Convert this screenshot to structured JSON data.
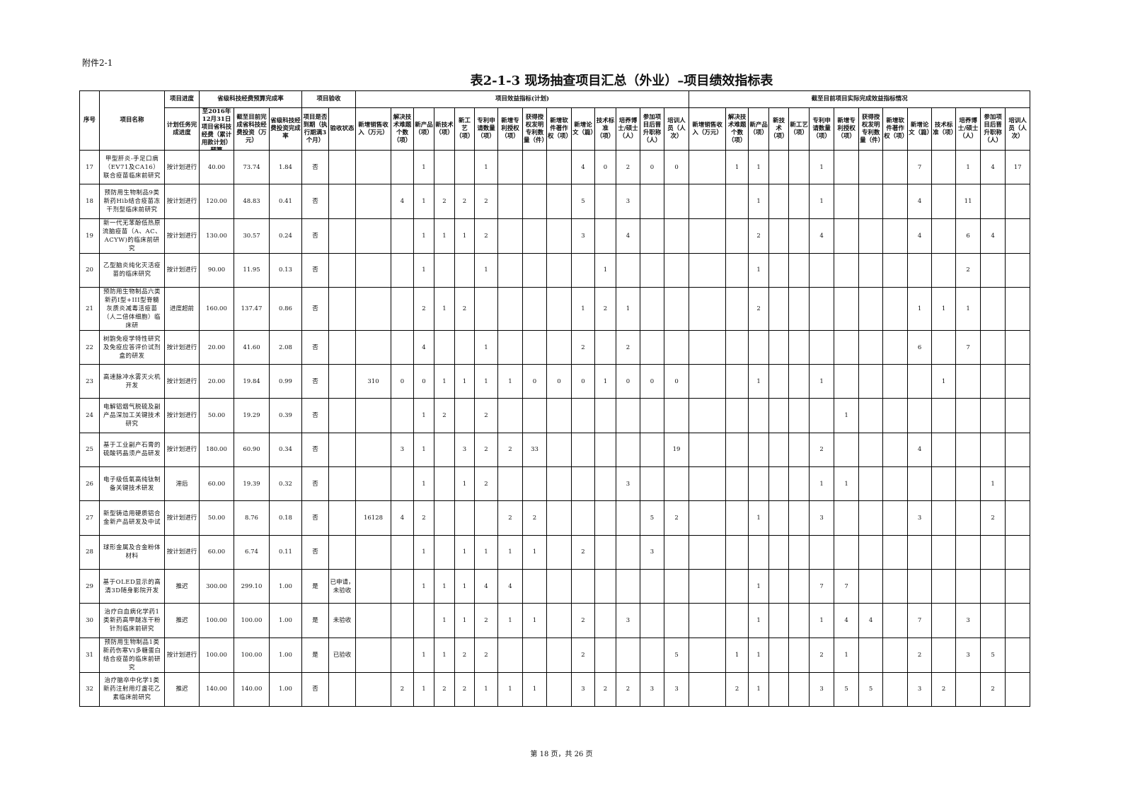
{
  "document": {
    "attachment_label": "附件2-1",
    "title": "表2-1-3 现场抽查项目汇总（外业）–项目绩效指标表",
    "footer": "第 18 页，共 26 页"
  },
  "table": {
    "group_headers": {
      "seq": "序号",
      "name": "项目名称",
      "progress": "项目进度",
      "budget": "省级科技经费预算完成率",
      "acceptance": "项目验收",
      "plan": "项目效益指标(计划)",
      "actual": "截至目前项目实际完成效益指标情况"
    },
    "sub_headers": {
      "progress": "计划任务完成进度",
      "budget_plan": "至2016年12月31日项目省科技经费（累计用款计划）预算",
      "budget_spent": "截至目前完成省科技经费投资（万元）",
      "budget_rate": "省级科技经费投资完成率",
      "overdue": "项目是否到期（执行期满3个月）",
      "acceptance_status": "验收状态"
    },
    "plan_columns": [
      "新增销售收入（万元）",
      "解决技术难题个数（项）",
      "新产品（项）",
      "新技术（项）",
      "新工艺（项）",
      "专利申请数量（项）",
      "新增专利授权（项）",
      "获得授权发明专利数量（件）",
      "新增软件著作权（项）",
      "新增论文（篇）",
      "技术标准（项）",
      "培养博士/硕士（人）",
      "参加项目后晋升职称（人）",
      "培训人员（人次）"
    ],
    "actual_columns": [
      "新增销售收入（万元）",
      "解决技术难题个数（项）",
      "新产品（项）",
      "新技术（项）",
      "新工艺（项）",
      "专利申请数量（项）",
      "新增专利授权（项）",
      "获得授权发明专利数量（件）",
      "新增软件著作权（项）",
      "新增论文（篇）",
      "技术标准（项）",
      "培养博士/硕士（人）",
      "参加项目后晋升职称（人）",
      "培训人员（人次）"
    ],
    "rows": [
      {
        "id": "17",
        "name": "甲型肝炎-手足口病（EV71及CA16）联合疫苗临床前研究",
        "progress": "按计划进行",
        "budget": "40.00",
        "spent": "73.74",
        "rate": "1.84",
        "overdue": "否",
        "status": "",
        "plan": [
          "",
          "",
          "1",
          "",
          "",
          "1",
          "",
          "",
          "",
          "4",
          "0",
          "2",
          "0",
          "0"
        ],
        "actual": [
          "",
          "1",
          "1",
          "",
          "",
          "1",
          "",
          "",
          "",
          "7",
          "",
          "1",
          "4",
          "17"
        ]
      },
      {
        "id": "18",
        "name": "预防用生物制品9类新药Hib结合疫苗冻干剂型临床前研究",
        "progress": "按计划进行",
        "budget": "120.00",
        "spent": "48.83",
        "rate": "0.41",
        "overdue": "否",
        "status": "",
        "plan": [
          "",
          "4",
          "1",
          "2",
          "2",
          "2",
          "",
          "",
          "",
          "5",
          "",
          "3",
          "",
          ""
        ],
        "actual": [
          "",
          "",
          "1",
          "",
          "",
          "1",
          "",
          "",
          "",
          "4",
          "",
          "11",
          "",
          ""
        ]
      },
      {
        "id": "19",
        "name": "新一代无苯酚低热原流脑疫苗（A、AC、ACYW)的临床前研究",
        "progress": "按计划进行",
        "budget": "130.00",
        "spent": "30.57",
        "rate": "0.24",
        "overdue": "否",
        "status": "",
        "plan": [
          "",
          "",
          "1",
          "1",
          "1",
          "2",
          "",
          "",
          "",
          "3",
          "",
          "4",
          "",
          ""
        ],
        "actual": [
          "",
          "",
          "2",
          "",
          "",
          "4",
          "",
          "",
          "",
          "4",
          "",
          "6",
          "4",
          ""
        ]
      },
      {
        "id": "20",
        "name": "乙型脑炎纯化灭活疫苗的临床研究",
        "progress": "按计划进行",
        "budget": "90.00",
        "spent": "11.95",
        "rate": "0.13",
        "overdue": "否",
        "status": "",
        "plan": [
          "",
          "",
          "1",
          "",
          "",
          "1",
          "",
          "",
          "",
          "",
          "1",
          "",
          "",
          ""
        ],
        "actual": [
          "",
          "",
          "1",
          "",
          "",
          "",
          "",
          "",
          "",
          "",
          "",
          "2",
          "",
          ""
        ]
      },
      {
        "id": "21",
        "name": "预防用生物制品六类新药I型+III型脊髓灰质炎减毒活疫苗（人二倍体细胞）临床研",
        "progress": "进度超前",
        "budget": "160.00",
        "spent": "137.47",
        "rate": "0.86",
        "overdue": "否",
        "status": "",
        "plan": [
          "",
          "",
          "2",
          "1",
          "2",
          "",
          "",
          "",
          "",
          "1",
          "2",
          "1",
          "",
          ""
        ],
        "actual": [
          "",
          "",
          "2",
          "",
          "",
          "",
          "",
          "",
          "",
          "1",
          "1",
          "1",
          "",
          ""
        ]
      },
      {
        "id": "22",
        "name": "树鼩免疫学特性研究及免疫应答评价试剂盒的研发",
        "progress": "按计划进行",
        "budget": "20.00",
        "spent": "41.60",
        "rate": "2.08",
        "overdue": "否",
        "status": "",
        "plan": [
          "",
          "",
          "4",
          "",
          "",
          "1",
          "",
          "",
          "",
          "2",
          "",
          "2",
          "",
          ""
        ],
        "actual": [
          "",
          "",
          "",
          "",
          "",
          "",
          "",
          "",
          "",
          "6",
          "",
          "7",
          "",
          ""
        ]
      },
      {
        "id": "23",
        "name": "高速脉冲水雾灭火机开发",
        "progress": "按计划进行",
        "budget": "20.00",
        "spent": "19.84",
        "rate": "0.99",
        "overdue": "否",
        "status": "",
        "plan": [
          "310",
          "0",
          "0",
          "1",
          "1",
          "1",
          "1",
          "0",
          "0",
          "0",
          "1",
          "0",
          "0",
          "0"
        ],
        "actual": [
          "",
          "",
          "1",
          "",
          "",
          "1",
          "",
          "",
          "",
          "",
          "1",
          "",
          "",
          ""
        ]
      },
      {
        "id": "24",
        "name": "电解铝烟气脱硫及副产品深加工关键技术研究",
        "progress": "按计划进行",
        "budget": "50.00",
        "spent": "19.29",
        "rate": "0.39",
        "overdue": "否",
        "status": "",
        "plan": [
          "",
          "",
          "1",
          "2",
          "",
          "2",
          "",
          "",
          "",
          "",
          "",
          "",
          "",
          ""
        ],
        "actual": [
          "",
          "",
          "",
          "",
          "",
          "",
          "1",
          "",
          "",
          "",
          "",
          "",
          "",
          ""
        ]
      },
      {
        "id": "25",
        "name": "基于工业副产石膏的硫酸钙晶须产品研发",
        "progress": "按计划进行",
        "budget": "180.00",
        "spent": "60.90",
        "rate": "0.34",
        "overdue": "否",
        "status": "",
        "plan": [
          "",
          "3",
          "1",
          "",
          "3",
          "2",
          "2",
          "33",
          "",
          "",
          "",
          "",
          "",
          "19"
        ],
        "actual": [
          "",
          "",
          "",
          "",
          "",
          "2",
          "",
          "",
          "",
          "4",
          "",
          "",
          "",
          ""
        ]
      },
      {
        "id": "26",
        "name": "电子级低氧高纯钛制备关键技术研发",
        "progress": "滞后",
        "budget": "60.00",
        "spent": "19.39",
        "rate": "0.32",
        "overdue": "否",
        "status": "",
        "plan": [
          "",
          "",
          "1",
          "",
          "1",
          "2",
          "",
          "",
          "",
          "",
          "",
          "3",
          "",
          ""
        ],
        "actual": [
          "",
          "",
          "",
          "",
          "",
          "1",
          "1",
          "",
          "",
          "",
          "",
          "",
          "1",
          ""
        ]
      },
      {
        "id": "27",
        "name": "新型铸造用硬质铝合金新产品研发及中试",
        "progress": "按计划进行",
        "budget": "50.00",
        "spent": "8.76",
        "rate": "0.18",
        "overdue": "否",
        "status": "",
        "plan": [
          "16128",
          "4",
          "2",
          "",
          "",
          "",
          "2",
          "2",
          "",
          "",
          "",
          "",
          "5",
          "2"
        ],
        "actual": [
          "",
          "",
          "1",
          "",
          "",
          "3",
          "",
          "",
          "",
          "3",
          "",
          "",
          "2",
          ""
        ]
      },
      {
        "id": "28",
        "name": "球形金属及合金粉体材料",
        "progress": "按计划进行",
        "budget": "60.00",
        "spent": "6.74",
        "rate": "0.11",
        "overdue": "否",
        "status": "",
        "plan": [
          "",
          "",
          "1",
          "",
          "1",
          "1",
          "1",
          "1",
          "",
          "2",
          "",
          "",
          "3",
          ""
        ],
        "actual": [
          "",
          "",
          "",
          "",
          "",
          "",
          "",
          "",
          "",
          "",
          "",
          "",
          "",
          ""
        ]
      },
      {
        "id": "29",
        "name": "基于OLED显示的高清3D随身影院开发",
        "progress": "推迟",
        "budget": "300.00",
        "spent": "299.10",
        "rate": "1.00",
        "overdue": "是",
        "status": "已申请，未验收",
        "plan": [
          "",
          "",
          "1",
          "1",
          "1",
          "4",
          "4",
          "",
          "",
          "",
          "",
          "",
          "",
          ""
        ],
        "actual": [
          "",
          "",
          "1",
          "",
          "",
          "7",
          "7",
          "",
          "",
          "",
          "",
          "",
          "",
          ""
        ]
      },
      {
        "id": "30",
        "name": "治疗白血病化学药1类新药高甲醚冻干粉针剂临床前研究",
        "progress": "推迟",
        "budget": "100.00",
        "spent": "100.00",
        "rate": "1.00",
        "overdue": "是",
        "status": "未验收",
        "plan": [
          "",
          "",
          "",
          "1",
          "1",
          "2",
          "1",
          "1",
          "",
          "2",
          "",
          "3",
          "",
          ""
        ],
        "actual": [
          "",
          "",
          "1",
          "",
          "",
          "1",
          "4",
          "4",
          "",
          "7",
          "",
          "3",
          "",
          ""
        ]
      },
      {
        "id": "31",
        "name": "预防用生物制品1类新药伤寒Vi多糖蛋白结合疫苗的临床前研究",
        "progress": "按计划进行",
        "budget": "100.00",
        "spent": "100.00",
        "rate": "1.00",
        "overdue": "是",
        "status": "已验收",
        "plan": [
          "",
          "",
          "1",
          "1",
          "2",
          "2",
          "",
          "",
          "",
          "2",
          "",
          "",
          "",
          "5"
        ],
        "actual": [
          "",
          "1",
          "1",
          "",
          "",
          "2",
          "1",
          "",
          "",
          "2",
          "",
          "3",
          "5",
          ""
        ]
      },
      {
        "id": "32",
        "name": "治疗脑卒中化学1类新药注射用灯盏花乙素临床前研究",
        "progress": "推迟",
        "budget": "140.00",
        "spent": "140.00",
        "rate": "1.00",
        "overdue": "否",
        "status": "",
        "plan": [
          "",
          "2",
          "1",
          "2",
          "2",
          "1",
          "1",
          "1",
          "",
          "3",
          "2",
          "2",
          "3",
          "3"
        ],
        "actual": [
          "",
          "2",
          "1",
          "",
          "",
          "3",
          "5",
          "5",
          "",
          "3",
          "2",
          "",
          "2",
          ""
        ]
      }
    ]
  }
}
